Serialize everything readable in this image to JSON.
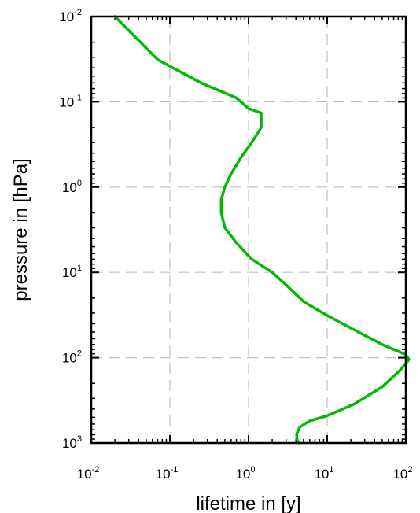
{
  "chart_data": {
    "type": "line",
    "xlabel": "lifetime in [y]",
    "ylabel": "pressure in [hPa]",
    "x_scale": "log",
    "y_scale": "log",
    "y_reversed": true,
    "xlim": [
      0.01,
      100
    ],
    "ylim": [
      0.01,
      1000
    ],
    "grid": true,
    "x_ticks": [
      {
        "base": "10",
        "exp": "-2",
        "value": 0.01
      },
      {
        "base": "10",
        "exp": "-1",
        "value": 0.1
      },
      {
        "base": "10",
        "exp": "0",
        "value": 1
      },
      {
        "base": "10",
        "exp": "1",
        "value": 10
      },
      {
        "base": "10",
        "exp": "2",
        "value": 100
      }
    ],
    "y_ticks": [
      {
        "base": "10",
        "exp": "-2",
        "value": 0.01
      },
      {
        "base": "10",
        "exp": "-1",
        "value": 0.1
      },
      {
        "base": "10",
        "exp": "0",
        "value": 1
      },
      {
        "base": "10",
        "exp": "1",
        "value": 10
      },
      {
        "base": "10",
        "exp": "2",
        "value": 100
      },
      {
        "base": "10",
        "exp": "3",
        "value": 1000
      }
    ],
    "series": [
      {
        "color": "#00bb00",
        "points": [
          {
            "x": 0.02,
            "y": 0.01
          },
          {
            "x": 0.07,
            "y": 0.032
          },
          {
            "x": 0.25,
            "y": 0.06
          },
          {
            "x": 0.7,
            "y": 0.09
          },
          {
            "x": 1.0,
            "y": 0.12
          },
          {
            "x": 1.45,
            "y": 0.135
          },
          {
            "x": 1.45,
            "y": 0.2
          },
          {
            "x": 1.1,
            "y": 0.3
          },
          {
            "x": 0.8,
            "y": 0.45
          },
          {
            "x": 0.6,
            "y": 0.7
          },
          {
            "x": 0.5,
            "y": 1.0
          },
          {
            "x": 0.45,
            "y": 1.4
          },
          {
            "x": 0.45,
            "y": 2.0
          },
          {
            "x": 0.5,
            "y": 3.0
          },
          {
            "x": 0.7,
            "y": 4.5
          },
          {
            "x": 1.1,
            "y": 7.0
          },
          {
            "x": 2.0,
            "y": 10.0
          },
          {
            "x": 3.0,
            "y": 14.0
          },
          {
            "x": 5.0,
            "y": 22.0
          },
          {
            "x": 10.0,
            "y": 32.0
          },
          {
            "x": 20.0,
            "y": 45.0
          },
          {
            "x": 50.0,
            "y": 70.0
          },
          {
            "x": 100.0,
            "y": 92.0
          },
          {
            "x": 110.0,
            "y": 105.0
          },
          {
            "x": 85.0,
            "y": 140.0
          },
          {
            "x": 50.0,
            "y": 220.0
          },
          {
            "x": 22.0,
            "y": 350.0
          },
          {
            "x": 10.0,
            "y": 480.0
          },
          {
            "x": 6.0,
            "y": 550.0
          },
          {
            "x": 4.5,
            "y": 650.0
          },
          {
            "x": 4.1,
            "y": 780.0
          },
          {
            "x": 4.1,
            "y": 900.0
          },
          {
            "x": 4.4,
            "y": 1000.0
          }
        ]
      }
    ]
  }
}
